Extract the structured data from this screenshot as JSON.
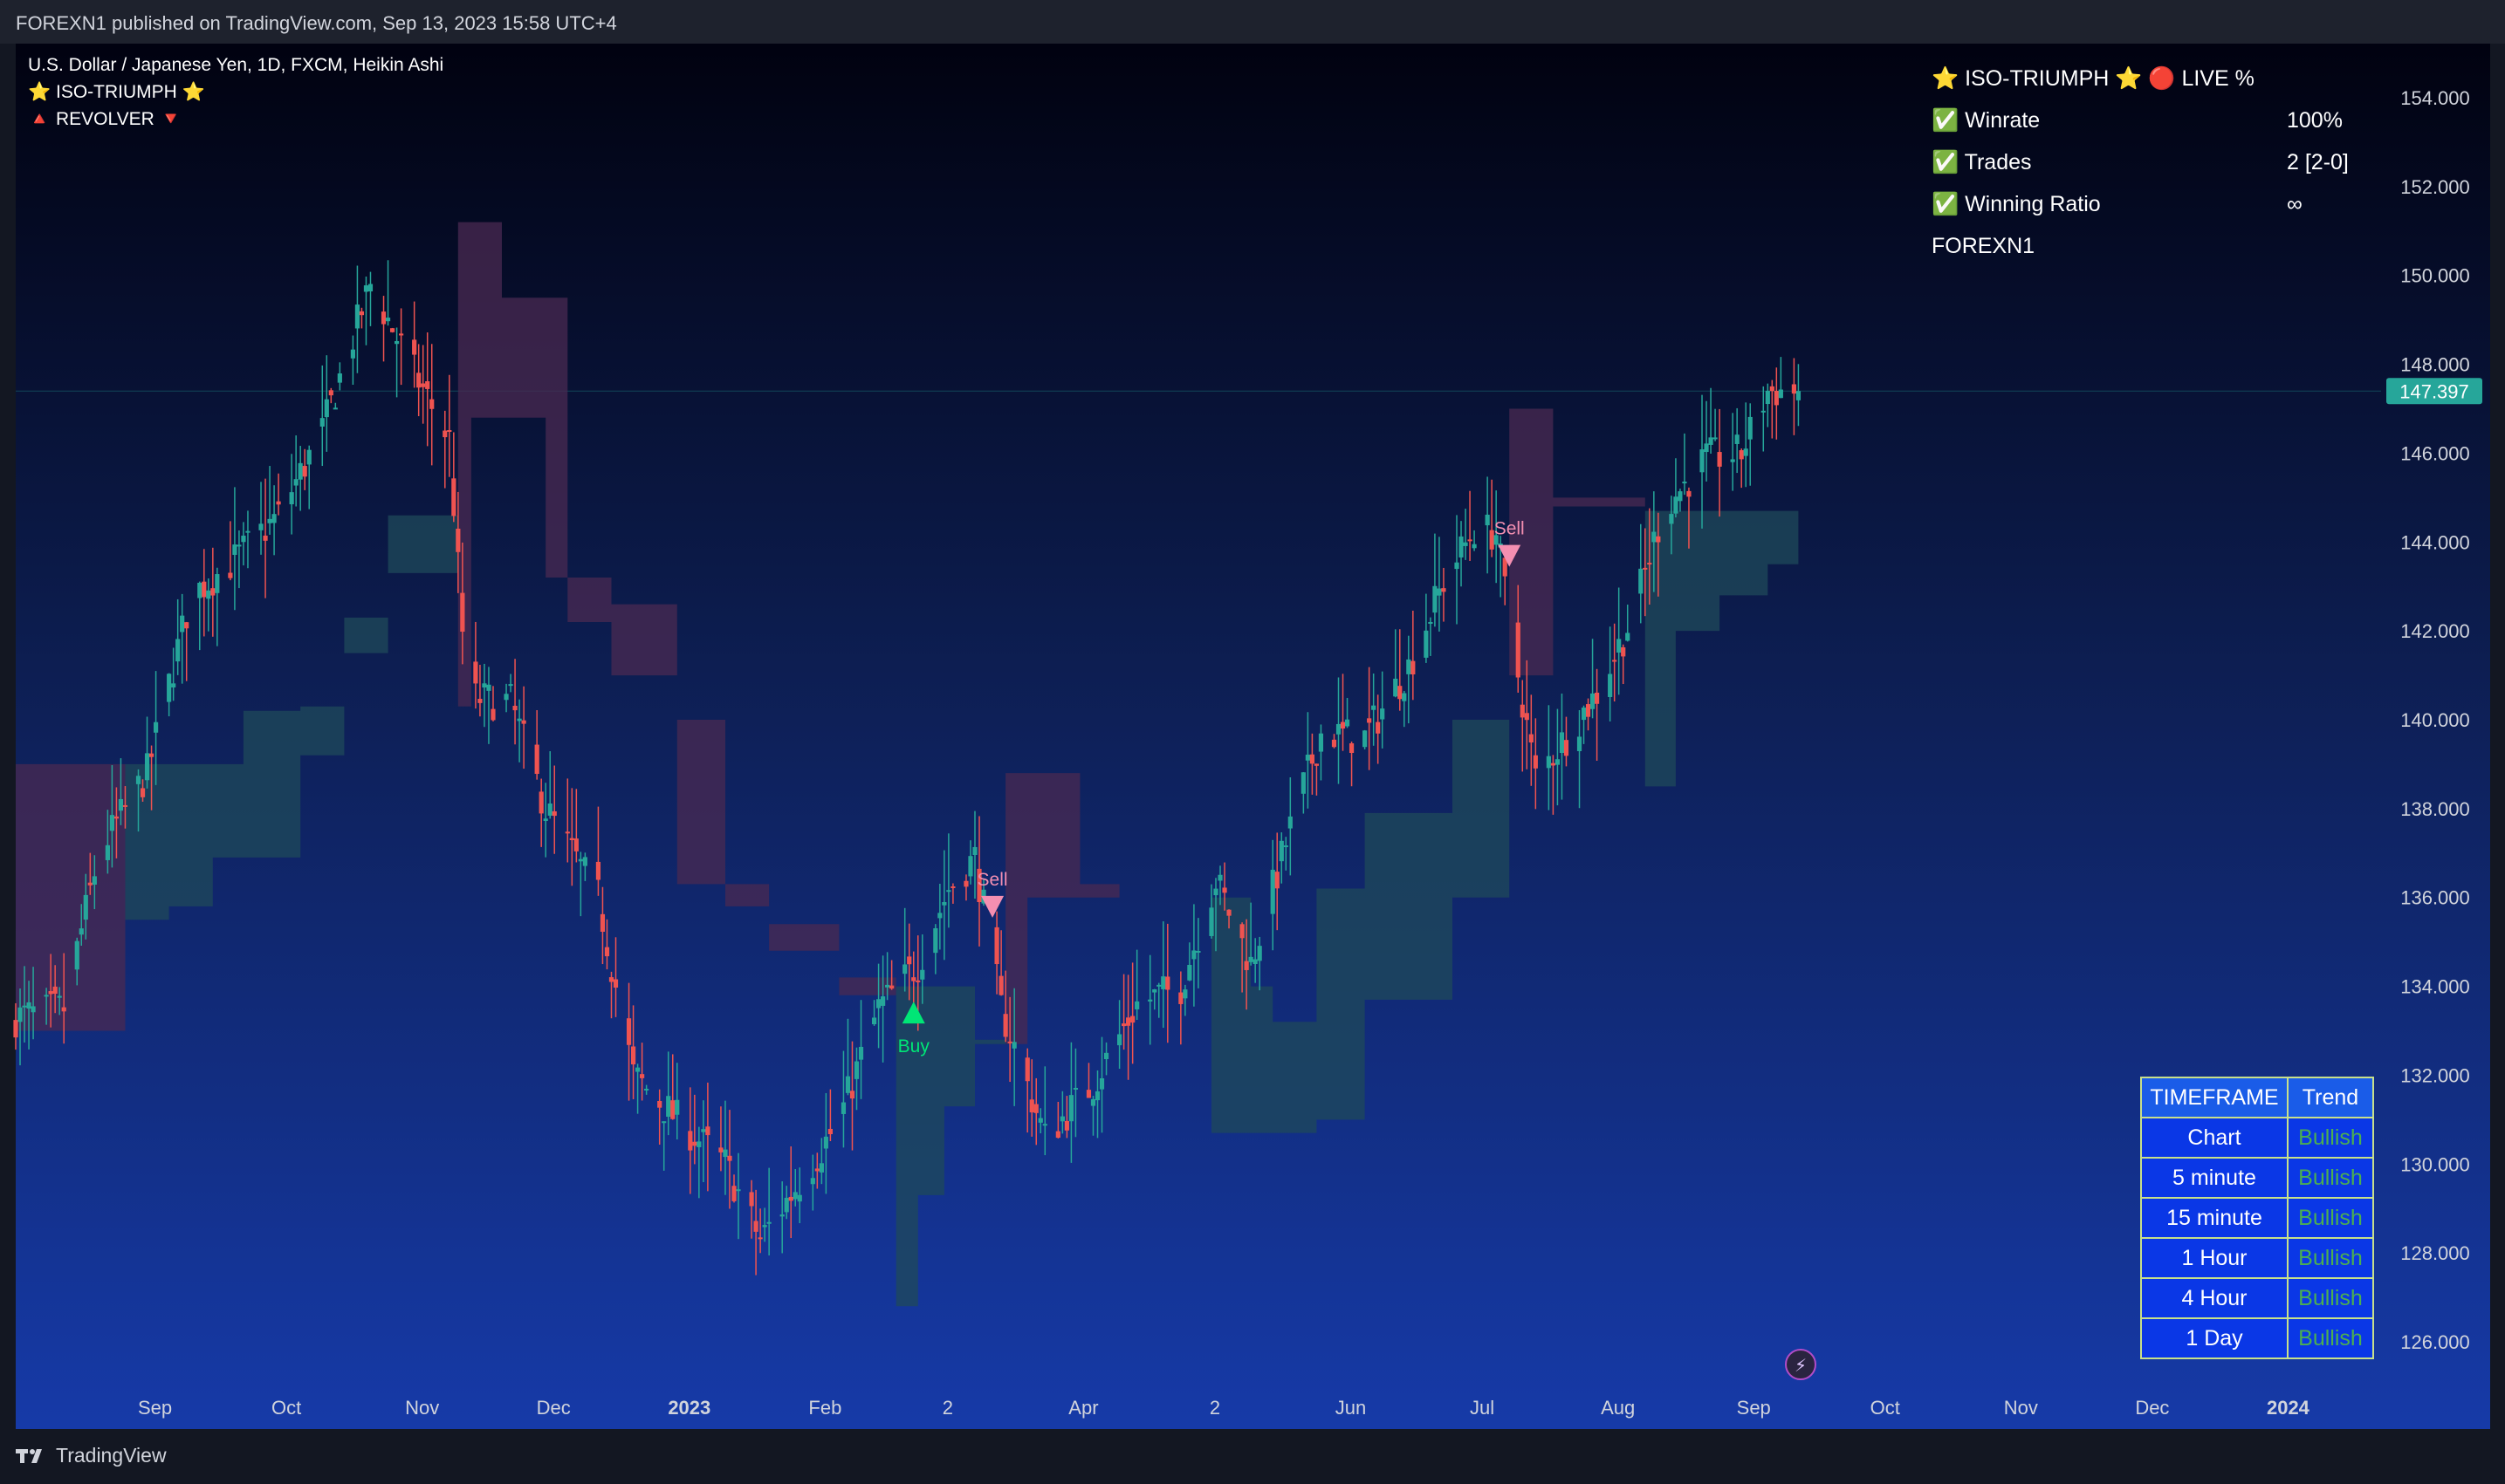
{
  "header": {
    "published": "FOREXN1 published on TradingView.com, Sep 13, 2023 15:58 UTC+4"
  },
  "footer": {
    "brand": "TradingView"
  },
  "legend": {
    "symbol": "U.S. Dollar / Japanese Yen, 1D, FXCM, Heikin Ashi",
    "indicator1": "⭐ ISO-TRIUMPH ⭐",
    "indicator2": "🔺 REVOLVER 🔻"
  },
  "stats_panel": {
    "title": "⭐ ISO-TRIUMPH ⭐  🔴  LIVE %",
    "rows": [
      {
        "label": "✅ Winrate",
        "value": "100%"
      },
      {
        "label": "✅ Trades",
        "value": "2 [2-0]"
      },
      {
        "label": "✅ Winning Ratio",
        "value": "∞"
      }
    ],
    "footer": "FOREXN1"
  },
  "timeframe_table": {
    "headers": [
      "TIMEFRAME",
      "Trend"
    ],
    "rows": [
      {
        "timeframe": "Chart",
        "trend": "Bullish"
      },
      {
        "timeframe": "5 minute",
        "trend": "Bullish"
      },
      {
        "timeframe": "15 minute",
        "trend": "Bullish"
      },
      {
        "timeframe": "1 Hour",
        "trend": "Bullish"
      },
      {
        "timeframe": "4 Hour",
        "trend": "Bullish"
      },
      {
        "timeframe": "1 Day",
        "trend": "Bullish"
      }
    ]
  },
  "colors": {
    "bullish_candle": "#26a69a",
    "bearish_candle": "#ef5350",
    "bull_band": "#1f4a5a",
    "bear_band": "#4a2a52",
    "price_badge": "#26a69a",
    "buy_signal": "#00e676",
    "sell_signal": "#f48fb1"
  },
  "chart_data": {
    "type": "candlestick",
    "symbol": "USDJPY",
    "timeframe": "1D",
    "chart_style": "Heikin Ashi",
    "last_price": "147.397",
    "ylim": [
      124.8,
      155.7
    ],
    "y_ticks": [
      "154.000",
      "152.000",
      "150.000",
      "148.000",
      "146.000",
      "144.000",
      "142.000",
      "140.000",
      "138.000",
      "136.000",
      "134.000",
      "132.000",
      "130.000",
      "128.000",
      "126.000"
    ],
    "x_ticks": [
      {
        "label": "Sep",
        "date": "2022-09-01"
      },
      {
        "label": "Oct",
        "date": "2022-10-01"
      },
      {
        "label": "Nov",
        "date": "2022-11-01"
      },
      {
        "label": "Dec",
        "date": "2022-12-01"
      },
      {
        "label": "2023",
        "date": "2023-01-01",
        "bold": true
      },
      {
        "label": "Feb",
        "date": "2023-02-01"
      },
      {
        "label": "2",
        "date": "2023-03-01"
      },
      {
        "label": "Apr",
        "date": "2023-04-01"
      },
      {
        "label": "2",
        "date": "2023-05-01"
      },
      {
        "label": "Jun",
        "date": "2023-06-01"
      },
      {
        "label": "Jul",
        "date": "2023-07-01"
      },
      {
        "label": "Aug",
        "date": "2023-08-01"
      },
      {
        "label": "Sep",
        "date": "2023-09-01"
      },
      {
        "label": "Oct",
        "date": "2023-10-01"
      },
      {
        "label": "Nov",
        "date": "2023-11-01"
      },
      {
        "label": "Dec",
        "date": "2023-12-01"
      },
      {
        "label": "2024",
        "date": "2024-01-01",
        "bold": true
      }
    ],
    "price_path": [
      [
        "2022-08-01",
        133.3
      ],
      [
        "2022-08-12",
        133.5
      ],
      [
        "2022-08-20",
        137.0
      ],
      [
        "2022-08-31",
        138.8
      ],
      [
        "2022-09-10",
        142.8
      ],
      [
        "2022-09-20",
        143.6
      ],
      [
        "2022-09-30",
        144.6
      ],
      [
        "2022-10-10",
        146.5
      ],
      [
        "2022-10-21",
        149.8
      ],
      [
        "2022-10-31",
        147.8
      ],
      [
        "2022-11-08",
        146.3
      ],
      [
        "2022-11-12",
        140.5
      ],
      [
        "2022-11-22",
        140.4
      ],
      [
        "2022-11-30",
        138.0
      ],
      [
        "2022-12-06",
        137.0
      ],
      [
        "2022-12-12",
        136.0
      ],
      [
        "2022-12-20",
        132.0
      ],
      [
        "2022-12-30",
        131.0
      ],
      [
        "2023-01-10",
        130.0
      ],
      [
        "2023-01-18",
        128.3
      ],
      [
        "2023-01-31",
        130.2
      ],
      [
        "2023-02-05",
        131.0
      ],
      [
        "2023-02-14",
        133.5
      ],
      [
        "2023-02-23",
        134.5
      ],
      [
        "2023-03-02",
        136.2
      ],
      [
        "2023-03-08",
        136.9
      ],
      [
        "2023-03-14",
        133.5
      ],
      [
        "2023-03-24",
        130.6
      ],
      [
        "2023-04-04",
        131.8
      ],
      [
        "2023-04-14",
        133.6
      ],
      [
        "2023-04-24",
        134.0
      ],
      [
        "2023-05-02",
        136.4
      ],
      [
        "2023-05-10",
        134.5
      ],
      [
        "2023-05-20",
        137.9
      ],
      [
        "2023-05-26",
        139.7
      ],
      [
        "2023-06-05",
        139.6
      ],
      [
        "2023-06-15",
        141.2
      ],
      [
        "2023-06-23",
        143.1
      ],
      [
        "2023-06-30",
        144.3
      ],
      [
        "2023-07-05",
        144.2
      ],
      [
        "2023-07-10",
        141.0
      ],
      [
        "2023-07-14",
        138.7
      ],
      [
        "2023-07-20",
        139.5
      ],
      [
        "2023-07-28",
        140.6
      ],
      [
        "2023-08-05",
        142.3
      ],
      [
        "2023-08-12",
        144.7
      ],
      [
        "2023-08-22",
        145.9
      ],
      [
        "2023-08-30",
        146.0
      ],
      [
        "2023-09-05",
        147.4
      ],
      [
        "2023-09-12",
        147.4
      ]
    ],
    "band_segments": [
      {
        "trend": "bear",
        "points": [
          [
            "2022-08-01",
            139.0,
            133.0
          ],
          [
            "2022-08-26",
            139.0,
            135.5
          ]
        ]
      },
      {
        "trend": "bull",
        "points": [
          [
            "2022-08-26",
            139.0,
            135.5
          ],
          [
            "2022-09-05",
            139.0,
            135.8
          ],
          [
            "2022-09-15",
            139.0,
            136.9
          ],
          [
            "2022-09-22",
            140.2,
            136.9
          ],
          [
            "2022-10-05",
            140.3,
            139.2
          ],
          [
            "2022-10-15",
            142.3,
            141.5
          ],
          [
            "2022-10-25",
            144.6,
            143.3
          ],
          [
            "2022-11-10",
            144.7,
            144.7
          ]
        ]
      },
      {
        "trend": "bear",
        "points": [
          [
            "2022-11-10",
            151.2,
            140.3
          ],
          [
            "2022-11-13",
            151.2,
            146.8
          ],
          [
            "2022-11-20",
            149.5,
            146.8
          ],
          [
            "2022-11-30",
            149.5,
            143.2
          ],
          [
            "2022-12-05",
            143.2,
            142.2
          ],
          [
            "2022-12-15",
            142.6,
            141.0
          ],
          [
            "2022-12-30",
            140.0,
            136.3
          ],
          [
            "2023-01-10",
            136.3,
            135.8
          ],
          [
            "2023-01-20",
            135.4,
            134.8
          ],
          [
            "2023-02-05",
            134.2,
            133.8
          ],
          [
            "2023-02-18",
            134.2,
            133.8
          ]
        ]
      },
      {
        "trend": "bull",
        "points": [
          [
            "2023-02-18",
            134.0,
            126.8
          ],
          [
            "2023-02-23",
            134.0,
            129.3
          ],
          [
            "2023-03-01",
            134.0,
            131.3
          ],
          [
            "2023-03-08",
            132.8,
            132.7
          ],
          [
            "2023-03-15",
            132.8,
            132.7
          ]
        ]
      },
      {
        "trend": "bear",
        "points": [
          [
            "2023-03-15",
            138.8,
            132.7
          ],
          [
            "2023-03-20",
            138.8,
            136.0
          ],
          [
            "2023-04-01",
            136.3,
            136.0
          ],
          [
            "2023-04-10",
            136.0,
            136.0
          ],
          [
            "2023-05-01",
            136.0,
            136.0
          ]
        ]
      },
      {
        "trend": "bull",
        "points": [
          [
            "2023-05-01",
            136.0,
            130.7
          ],
          [
            "2023-05-10",
            134.0,
            130.7
          ],
          [
            "2023-05-15",
            133.2,
            130.7
          ],
          [
            "2023-05-25",
            136.2,
            131.0
          ],
          [
            "2023-06-05",
            137.9,
            133.7
          ],
          [
            "2023-06-25",
            140.0,
            136.0
          ],
          [
            "2023-07-08",
            144.3,
            141.2
          ]
        ]
      },
      {
        "trend": "bear",
        "points": [
          [
            "2023-07-08",
            147.0,
            141.0
          ],
          [
            "2023-07-18",
            145.0,
            144.8
          ],
          [
            "2023-08-08",
            144.7,
            144.7
          ]
        ]
      },
      {
        "trend": "bull",
        "points": [
          [
            "2023-08-08",
            144.7,
            138.5
          ],
          [
            "2023-08-15",
            144.7,
            142.0
          ],
          [
            "2023-08-25",
            144.7,
            142.8
          ],
          [
            "2023-09-05",
            144.7,
            143.5
          ],
          [
            "2023-09-12",
            144.7,
            143.6
          ]
        ]
      }
    ],
    "signals": [
      {
        "type": "Buy",
        "date": "2023-02-22",
        "price": 133.4
      },
      {
        "type": "Sell",
        "date": "2023-03-12",
        "price": 135.8
      },
      {
        "type": "Sell",
        "date": "2023-07-08",
        "price": 143.7
      }
    ]
  }
}
